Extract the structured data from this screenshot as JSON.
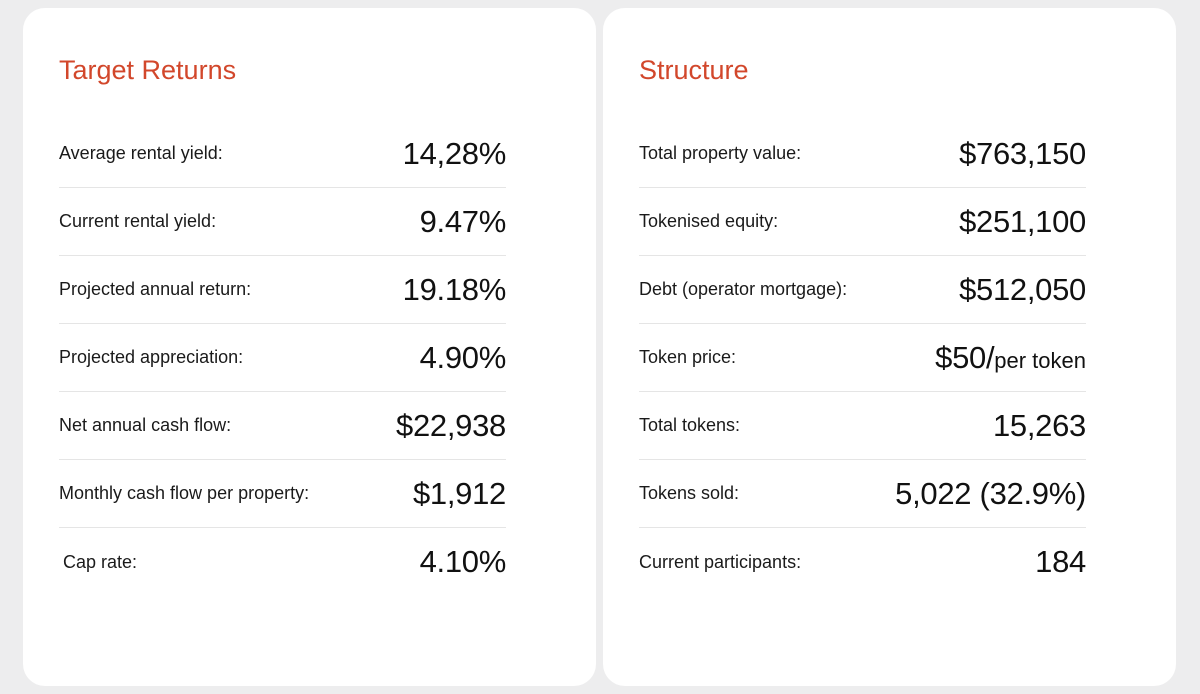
{
  "target_returns": {
    "title": "Target Returns",
    "rows": [
      {
        "label": "Average rental yield:",
        "value": "14,28%"
      },
      {
        "label": "Current rental yield:",
        "value": "9.47%"
      },
      {
        "label": "Projected annual return:",
        "value": "19.18%"
      },
      {
        "label": "Projected appreciation:",
        "value": "4.90%"
      },
      {
        "label": "Net annual cash flow:",
        "value": "$22,938"
      },
      {
        "label": "Monthly cash flow per property:",
        "value": "$1,912"
      },
      {
        "label": "Cap rate:",
        "value": "4.10%"
      }
    ]
  },
  "structure": {
    "title": "Structure",
    "rows": [
      {
        "label": "Total property value:",
        "value": "$763,150"
      },
      {
        "label": "Tokenised equity:",
        "value": "$251,100"
      },
      {
        "label": "Debt (operator mortgage):",
        "value": "$512,050"
      },
      {
        "label": "Token price:",
        "value": "$50/",
        "unit": "per token"
      },
      {
        "label": "Total tokens:",
        "value": "15,263"
      },
      {
        "label": "Tokens sold:",
        "value": "5,022 (32.9%)"
      },
      {
        "label": "Current participants:",
        "value": "184"
      }
    ]
  },
  "colors": {
    "accent": "#d2472b",
    "background": "#ededee",
    "card": "#ffffff"
  }
}
